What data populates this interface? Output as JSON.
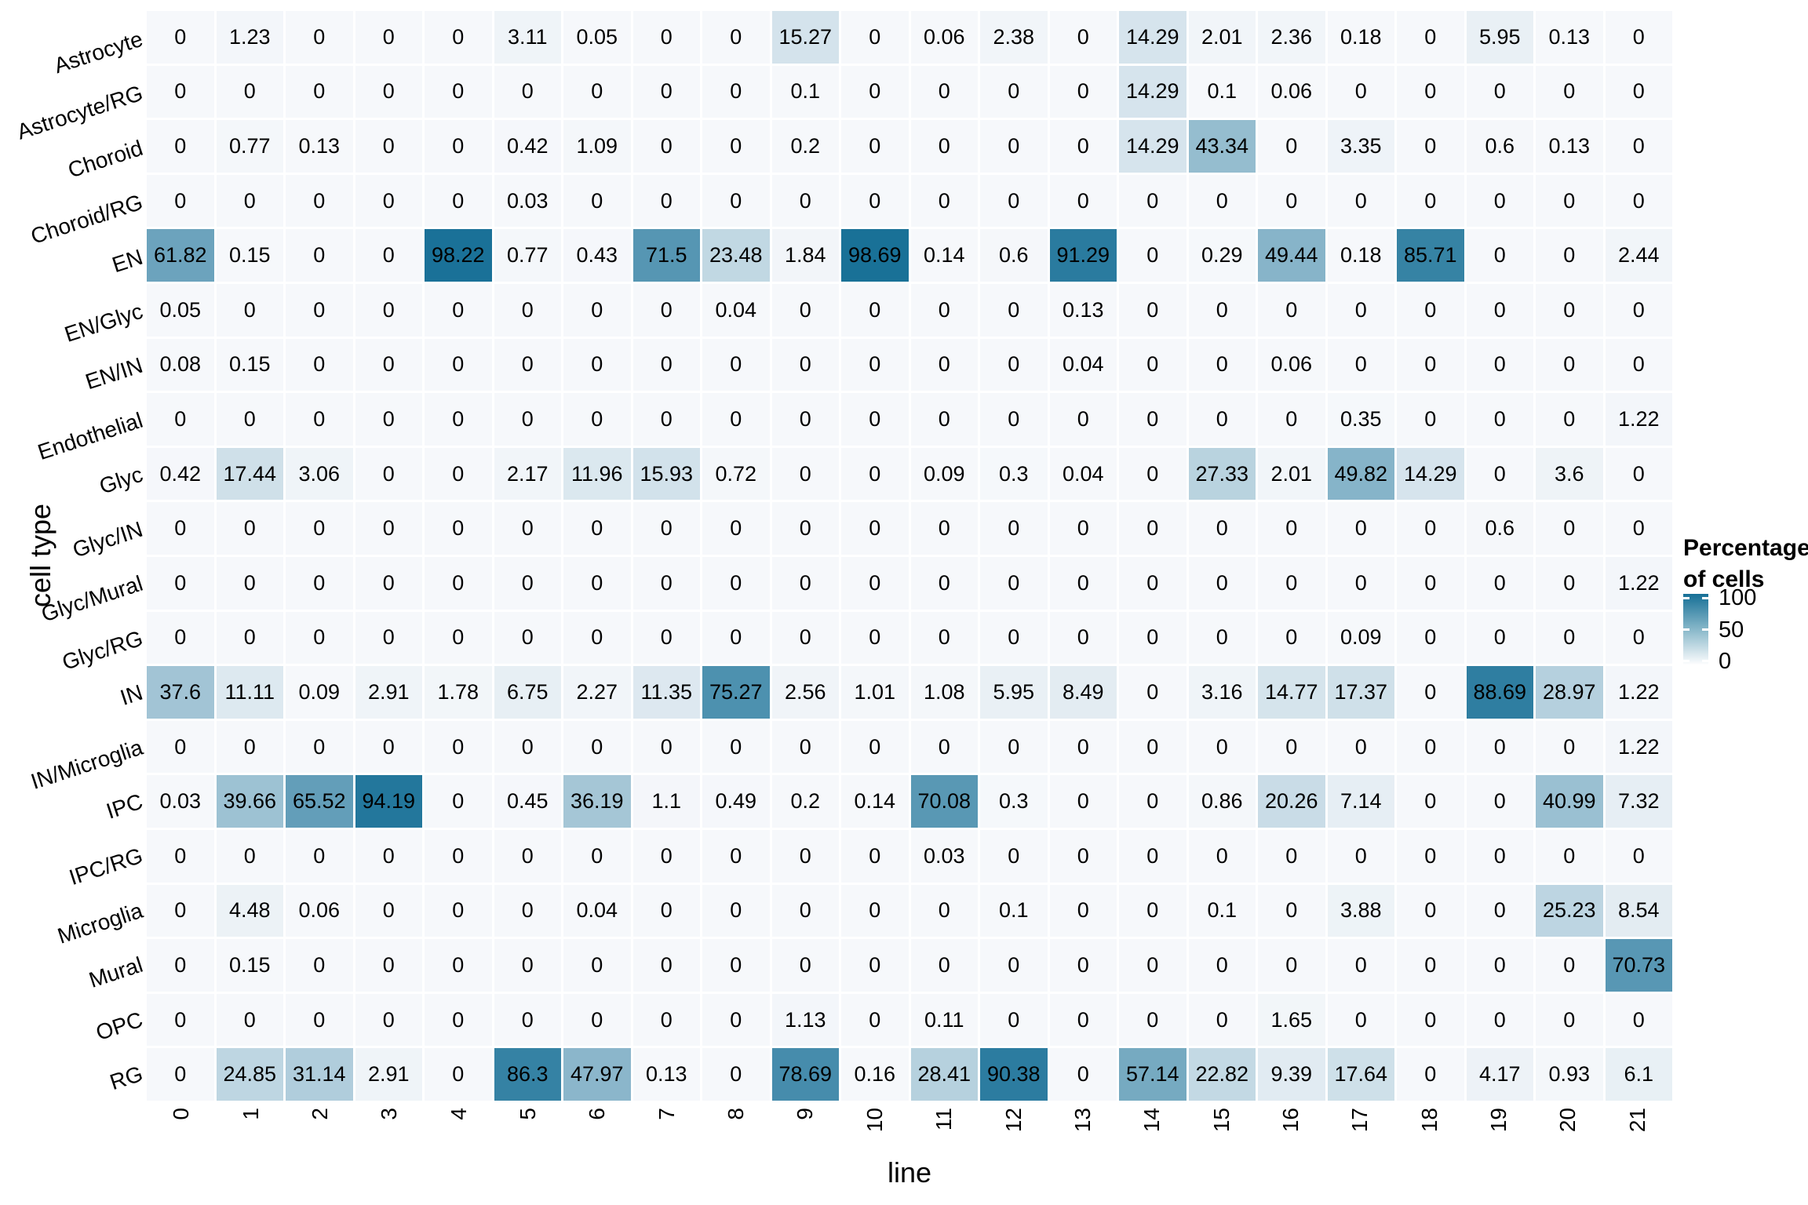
{
  "axes": {
    "x_title": "line",
    "y_title": "cell type"
  },
  "legend": {
    "title_line1": "Percentage",
    "title_line2": "of cells",
    "tick_labels": [
      "100",
      "50",
      "0"
    ]
  },
  "chart_data": {
    "type": "heatmap",
    "xlabel": "line",
    "ylabel": "cell type",
    "color_low": "#f6f8fb",
    "color_high": "#166f96",
    "value_range": [
      0,
      100
    ],
    "legend_title": "Percentage of cells",
    "columns": [
      "0",
      "1",
      "2",
      "3",
      "4",
      "5",
      "6",
      "7",
      "8",
      "9",
      "10",
      "11",
      "12",
      "13",
      "14",
      "15",
      "16",
      "17",
      "18",
      "19",
      "20",
      "21"
    ],
    "rows": [
      "Astrocyte",
      "Astrocyte/RG",
      "Choroid",
      "Choroid/RG",
      "EN",
      "EN/Glyc",
      "EN/IN",
      "Endothelial",
      "Glyc",
      "Glyc/IN",
      "Glyc/Mural",
      "Glyc/RG",
      "IN",
      "IN/Microglia",
      "IPC",
      "IPC/RG",
      "Microglia",
      "Mural",
      "OPC",
      "RG"
    ],
    "values": [
      [
        0,
        1.23,
        0,
        0,
        0,
        3.11,
        0.05,
        0,
        0,
        15.27,
        0,
        0.06,
        2.38,
        0,
        14.29,
        2.01,
        2.36,
        0.18,
        0,
        5.95,
        0.13,
        0
      ],
      [
        0,
        0,
        0,
        0,
        0,
        0,
        0,
        0,
        0,
        0.1,
        0,
        0,
        0,
        0,
        14.29,
        0.1,
        0.06,
        0,
        0,
        0,
        0,
        0
      ],
      [
        0,
        0.77,
        0.13,
        0,
        0,
        0.42,
        1.09,
        0,
        0,
        0.2,
        0,
        0,
        0,
        0,
        14.29,
        43.34,
        0,
        3.35,
        0,
        0.6,
        0.13,
        0
      ],
      [
        0,
        0,
        0,
        0,
        0,
        0.03,
        0,
        0,
        0,
        0,
        0,
        0,
        0,
        0,
        0,
        0,
        0,
        0,
        0,
        0,
        0,
        0
      ],
      [
        61.82,
        0.15,
        0,
        0,
        98.22,
        0.77,
        0.43,
        71.5,
        23.48,
        1.84,
        98.69,
        0.14,
        0.6,
        91.29,
        0,
        0.29,
        49.44,
        0.18,
        85.71,
        0,
        0,
        2.44
      ],
      [
        0.05,
        0,
        0,
        0,
        0,
        0,
        0,
        0,
        0.04,
        0,
        0,
        0,
        0,
        0.13,
        0,
        0,
        0,
        0,
        0,
        0,
        0,
        0
      ],
      [
        0.08,
        0.15,
        0,
        0,
        0,
        0,
        0,
        0,
        0,
        0,
        0,
        0,
        0,
        0.04,
        0,
        0,
        0.06,
        0,
        0,
        0,
        0,
        0
      ],
      [
        0,
        0,
        0,
        0,
        0,
        0,
        0,
        0,
        0,
        0,
        0,
        0,
        0,
        0,
        0,
        0,
        0,
        0.35,
        0,
        0,
        0,
        1.22
      ],
      [
        0.42,
        17.44,
        3.06,
        0,
        0,
        2.17,
        11.96,
        15.93,
        0.72,
        0,
        0,
        0.09,
        0.3,
        0.04,
        0,
        27.33,
        2.01,
        49.82,
        14.29,
        0,
        3.6,
        0
      ],
      [
        0,
        0,
        0,
        0,
        0,
        0,
        0,
        0,
        0,
        0,
        0,
        0,
        0,
        0,
        0,
        0,
        0,
        0,
        0,
        0.6,
        0,
        0
      ],
      [
        0,
        0,
        0,
        0,
        0,
        0,
        0,
        0,
        0,
        0,
        0,
        0,
        0,
        0,
        0,
        0,
        0,
        0,
        0,
        0,
        0,
        1.22
      ],
      [
        0,
        0,
        0,
        0,
        0,
        0,
        0,
        0,
        0,
        0,
        0,
        0,
        0,
        0,
        0,
        0,
        0,
        0.09,
        0,
        0,
        0,
        0
      ],
      [
        37.6,
        11.11,
        0.09,
        2.91,
        1.78,
        6.75,
        2.27,
        11.35,
        75.27,
        2.56,
        1.01,
        1.08,
        5.95,
        8.49,
        0,
        3.16,
        14.77,
        17.37,
        0,
        88.69,
        28.97,
        1.22
      ],
      [
        0,
        0,
        0,
        0,
        0,
        0,
        0,
        0,
        0,
        0,
        0,
        0,
        0,
        0,
        0,
        0,
        0,
        0,
        0,
        0,
        0,
        1.22
      ],
      [
        0.03,
        39.66,
        65.52,
        94.19,
        0,
        0.45,
        36.19,
        1.1,
        0.49,
        0.2,
        0.14,
        70.08,
        0.3,
        0,
        0,
        0.86,
        20.26,
        7.14,
        0,
        0,
        40.99,
        7.32
      ],
      [
        0,
        0,
        0,
        0,
        0,
        0,
        0,
        0,
        0,
        0,
        0,
        0.03,
        0,
        0,
        0,
        0,
        0,
        0,
        0,
        0,
        0,
        0
      ],
      [
        0,
        4.48,
        0.06,
        0,
        0,
        0,
        0.04,
        0,
        0,
        0,
        0,
        0,
        0.1,
        0,
        0,
        0.1,
        0,
        3.88,
        0,
        0,
        25.23,
        8.54
      ],
      [
        0,
        0.15,
        0,
        0,
        0,
        0,
        0,
        0,
        0,
        0,
        0,
        0,
        0,
        0,
        0,
        0,
        0,
        0,
        0,
        0,
        0,
        70.73
      ],
      [
        0,
        0,
        0,
        0,
        0,
        0,
        0,
        0,
        0,
        1.13,
        0,
        0.11,
        0,
        0,
        0,
        0,
        1.65,
        0,
        0,
        0,
        0,
        0
      ],
      [
        0,
        24.85,
        31.14,
        2.91,
        0,
        86.3,
        47.97,
        0.13,
        0,
        78.69,
        0.16,
        28.41,
        90.38,
        0,
        57.14,
        22.82,
        9.39,
        17.64,
        0,
        4.17,
        0.93,
        6.1
      ]
    ]
  }
}
